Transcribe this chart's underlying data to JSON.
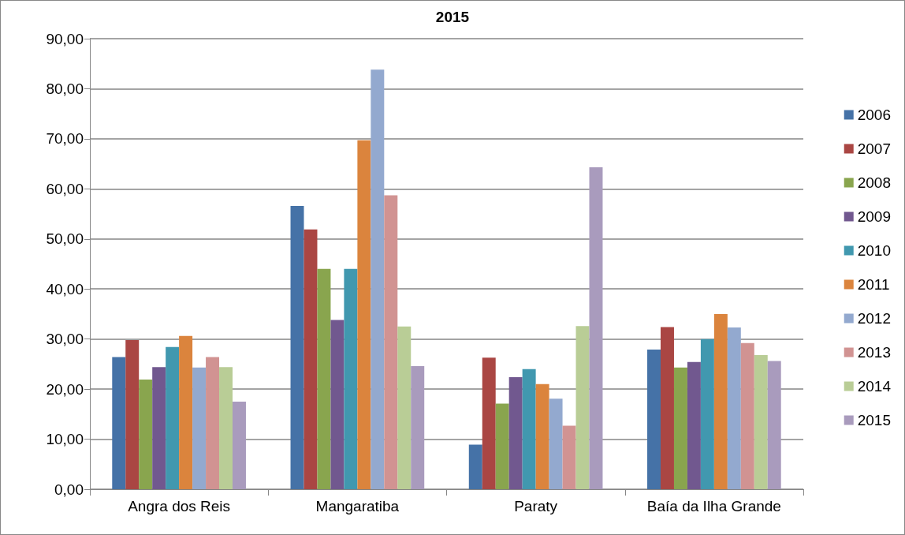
{
  "chart_data": {
    "type": "bar",
    "title": "2015",
    "categories": [
      "Angra dos Reis",
      "Mangaratiba",
      "Paraty",
      "Baía da Ilha Grande"
    ],
    "series": [
      {
        "name": "2006",
        "color": "#4572a7",
        "values": [
          26.4,
          56.6,
          8.9,
          27.9
        ]
      },
      {
        "name": "2007",
        "color": "#aa4643",
        "values": [
          29.8,
          51.9,
          26.3,
          32.4
        ]
      },
      {
        "name": "2008",
        "color": "#89a54e",
        "values": [
          21.9,
          44.0,
          17.1,
          24.3
        ]
      },
      {
        "name": "2009",
        "color": "#71588f",
        "values": [
          24.4,
          33.8,
          22.4,
          25.4
        ]
      },
      {
        "name": "2010",
        "color": "#4198af",
        "values": [
          28.4,
          44.0,
          24.0,
          30.0
        ]
      },
      {
        "name": "2011",
        "color": "#db843d",
        "values": [
          30.6,
          69.7,
          21.0,
          35.0
        ]
      },
      {
        "name": "2012",
        "color": "#93a9cf",
        "values": [
          24.3,
          83.8,
          18.1,
          32.3
        ]
      },
      {
        "name": "2013",
        "color": "#d19392",
        "values": [
          26.4,
          58.7,
          12.7,
          29.2
        ]
      },
      {
        "name": "2014",
        "color": "#b9cd96",
        "values": [
          24.4,
          32.5,
          32.6,
          26.8
        ]
      },
      {
        "name": "2015",
        "color": "#a99bbd",
        "values": [
          17.5,
          24.6,
          64.3,
          25.6
        ]
      }
    ],
    "ylim": [
      0,
      90
    ],
    "yticks": [
      {
        "value": 0,
        "label": "0,00"
      },
      {
        "value": 10,
        "label": "10,00"
      },
      {
        "value": 20,
        "label": "20,00"
      },
      {
        "value": 30,
        "label": "30,00"
      },
      {
        "value": 40,
        "label": "40,00"
      },
      {
        "value": 50,
        "label": "50,00"
      },
      {
        "value": 60,
        "label": "60,00"
      },
      {
        "value": 70,
        "label": "70,00"
      },
      {
        "value": 80,
        "label": "80,00"
      },
      {
        "value": 90,
        "label": "90,00"
      }
    ],
    "grid": "y",
    "legend": "right"
  }
}
